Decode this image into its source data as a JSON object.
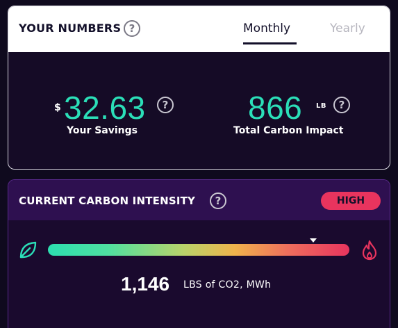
{
  "numbers": {
    "title": "YOUR NUMBERS",
    "help": "?",
    "tabs": [
      {
        "label": "Monthly",
        "active": true
      },
      {
        "label": "Yearly",
        "active": false
      }
    ],
    "savings": {
      "currency": "$",
      "value": "32.63",
      "label": "Your Savings"
    },
    "carbon": {
      "value": "866",
      "unit": "LB",
      "label": "Total Carbon Impact"
    }
  },
  "intensity": {
    "title": "CURRENT CARBON INTENSITY",
    "help": "?",
    "level": "HIGH",
    "marker_fraction": 0.88,
    "value": "1,146",
    "unit": "LBS of CO2, MWh"
  },
  "colors": {
    "accent": "#2bdfb8",
    "high": "#e8345e",
    "background": "#150b26"
  }
}
